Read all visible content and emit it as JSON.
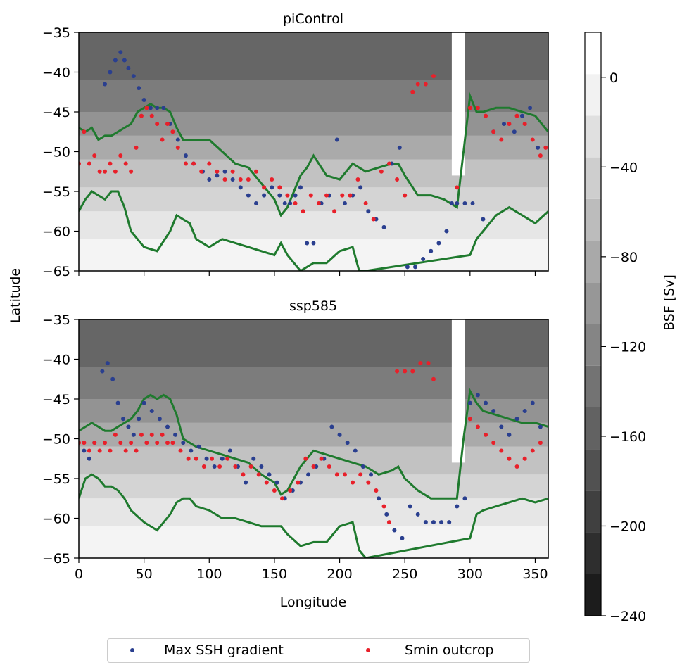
{
  "chart_data": [
    {
      "type": "contour-scatter",
      "title": "piControl",
      "xlabel": "",
      "ylabel": "Latitude",
      "xlim": [
        0,
        360
      ],
      "ylim": [
        -65,
        -35
      ],
      "xticks": [
        0,
        50,
        100,
        150,
        200,
        250,
        300,
        350
      ],
      "yticks": [
        -35,
        -40,
        -45,
        -50,
        -55,
        -60,
        -65
      ],
      "series": [
        {
          "name": "Max SSH gradient",
          "color": "#2a3f8f",
          "x": [
            20,
            24,
            28,
            32,
            35,
            38,
            42,
            46,
            50,
            55,
            60,
            65,
            70,
            76,
            82,
            88,
            95,
            100,
            106,
            112,
            118,
            124,
            130,
            136,
            142,
            148,
            154,
            158,
            162,
            166,
            170,
            175,
            180,
            186,
            192,
            198,
            204,
            210,
            216,
            222,
            228,
            234,
            240,
            246,
            252,
            258,
            264,
            270,
            276,
            282,
            286,
            290,
            296,
            302,
            310,
            318,
            326,
            334,
            340,
            346,
            352
          ],
          "y": [
            -41.5,
            -40,
            -38.5,
            -37.5,
            -38.5,
            -39.5,
            -40.5,
            -42,
            -43.5,
            -44.5,
            -44.5,
            -44.5,
            -46.5,
            -48.5,
            -50.5,
            -51.5,
            -52.5,
            -53.5,
            -53,
            -52.5,
            -53.5,
            -54.5,
            -55.5,
            -56.5,
            -55.5,
            -54.5,
            -55.5,
            -56.5,
            -56.5,
            -55.5,
            -54.5,
            -61.5,
            -61.5,
            -56.5,
            -55.5,
            -48.5,
            -56.5,
            -55.5,
            -54.5,
            -57.5,
            -58.5,
            -59.5,
            -51.5,
            -49.5,
            -64.5,
            -64.5,
            -63.5,
            -62.5,
            -61.5,
            -60,
            -56.5,
            -56.5,
            -56.5,
            -56.5,
            -58.5,
            -47.5,
            -46.5,
            -47.5,
            -45.5,
            -44.5,
            -49.5
          ]
        },
        {
          "name": "Smin outcrop",
          "color": "#e8202a",
          "x": [
            0,
            4,
            8,
            12,
            16,
            20,
            24,
            28,
            32,
            36,
            40,
            44,
            48,
            52,
            56,
            60,
            64,
            68,
            72,
            76,
            82,
            88,
            94,
            100,
            106,
            112,
            118,
            124,
            130,
            136,
            142,
            148,
            154,
            160,
            166,
            172,
            178,
            184,
            190,
            196,
            202,
            208,
            214,
            220,
            226,
            232,
            238,
            244,
            250,
            256,
            260,
            266,
            272,
            290,
            300,
            306,
            312,
            318,
            324,
            330,
            336,
            342,
            348,
            354,
            358
          ],
          "y": [
            -51.5,
            -47.5,
            -51.5,
            -50.5,
            -52.5,
            -52.5,
            -51.5,
            -52.5,
            -50.5,
            -51.5,
            -52.5,
            -49.5,
            -45.5,
            -44.5,
            -45.5,
            -46.5,
            -48.5,
            -46.5,
            -47.5,
            -49.5,
            -51.5,
            -51.5,
            -52.5,
            -51.5,
            -52.5,
            -53.5,
            -52.5,
            -53.5,
            -53.5,
            -52.5,
            -54.5,
            -53.5,
            -54.5,
            -55.5,
            -56.5,
            -57.5,
            -55.5,
            -56.5,
            -55.5,
            -57.5,
            -55.5,
            -55.5,
            -53.5,
            -56.5,
            -58.5,
            -52.5,
            -51.5,
            -53.5,
            -55.5,
            -42.5,
            -41.5,
            -41.5,
            -40.5,
            -54.5,
            -44.5,
            -44.5,
            -45.5,
            -47.5,
            -48.5,
            -46.5,
            -45.5,
            -46.5,
            -48.5,
            -50.5,
            -49.5
          ]
        },
        {
          "name": "Front contour north",
          "color": "#1f7a2e",
          "x": [
            0,
            5,
            10,
            15,
            20,
            25,
            30,
            35,
            40,
            45,
            50,
            55,
            60,
            65,
            70,
            75,
            80,
            90,
            100,
            110,
            120,
            130,
            140,
            150,
            155,
            160,
            165,
            170,
            175,
            180,
            190,
            200,
            210,
            220,
            230,
            240,
            245,
            250,
            260,
            270,
            280,
            290,
            295,
            300,
            305,
            310,
            320,
            330,
            340,
            350,
            360
          ],
          "y": [
            -47,
            -47.5,
            -47,
            -48.5,
            -48,
            -48,
            -47.5,
            -47,
            -46.5,
            -45,
            -44.5,
            -44,
            -44.5,
            -44.5,
            -45,
            -47,
            -48.5,
            -48.5,
            -48.5,
            -50,
            -51.5,
            -52,
            -54,
            -56,
            -58,
            -57,
            -55,
            -53,
            -52,
            -50.5,
            -53,
            -53.5,
            -51.5,
            -52.5,
            -52,
            -51.5,
            -51.5,
            -53,
            -55.5,
            -55.5,
            -56,
            -57,
            -50,
            -43,
            -45,
            -45,
            -44.5,
            -44.5,
            -45,
            -45.5,
            -47.5
          ]
        },
        {
          "name": "Front contour south",
          "color": "#1f7a2e",
          "x": [
            0,
            5,
            10,
            15,
            20,
            25,
            30,
            35,
            40,
            50,
            60,
            70,
            75,
            80,
            85,
            90,
            100,
            110,
            120,
            130,
            140,
            150,
            155,
            160,
            170,
            180,
            190,
            200,
            210,
            215,
            220,
            300,
            305,
            310,
            320,
            330,
            340,
            350,
            360
          ],
          "y": [
            -57.5,
            -56,
            -55,
            -55.5,
            -56,
            -55,
            -55,
            -57,
            -60,
            -62,
            -62.5,
            -60,
            -58,
            -58.5,
            -59,
            -61,
            -62,
            -61,
            -61.5,
            -62,
            -62.5,
            -63,
            -61.5,
            -63,
            -65,
            -64,
            -64,
            -62.5,
            -62,
            -65,
            -65,
            -63,
            -61,
            -60,
            -58,
            -57,
            -58,
            -59,
            -57.5
          ]
        }
      ],
      "contour_levels": [
        -240,
        -220,
        -200,
        -180,
        -160,
        -140,
        -120,
        -100,
        -80,
        -60,
        -40,
        -20,
        0,
        20
      ]
    },
    {
      "type": "contour-scatter",
      "title": "ssp585",
      "xlabel": "Longitude",
      "ylabel": "Latitude",
      "xlim": [
        0,
        360
      ],
      "ylim": [
        -65,
        -35
      ],
      "xticks": [
        0,
        50,
        100,
        150,
        200,
        250,
        300,
        350
      ],
      "yticks": [
        -35,
        -40,
        -45,
        -50,
        -55,
        -60,
        -65
      ],
      "series": [
        {
          "name": "Max SSH gradient",
          "color": "#2a3f8f",
          "x": [
            4,
            8,
            12,
            18,
            22,
            26,
            30,
            34,
            38,
            42,
            46,
            50,
            56,
            62,
            68,
            74,
            80,
            86,
            92,
            98,
            104,
            110,
            116,
            122,
            128,
            134,
            140,
            146,
            152,
            158,
            164,
            170,
            176,
            182,
            188,
            194,
            200,
            206,
            212,
            218,
            224,
            230,
            236,
            242,
            248,
            254,
            260,
            266,
            272,
            278,
            284,
            290,
            296,
            300,
            306,
            312,
            318,
            324,
            330,
            336,
            342,
            348,
            354
          ],
          "y": [
            -51.5,
            -52.5,
            -50.5,
            -41.5,
            -40.5,
            -42.5,
            -45.5,
            -47.5,
            -48.5,
            -49.5,
            -47.5,
            -45.5,
            -46.5,
            -47.5,
            -48.5,
            -49.5,
            -50.5,
            -51.5,
            -51,
            -52.5,
            -53.5,
            -52.5,
            -51.5,
            -53.5,
            -55.5,
            -52.5,
            -53.5,
            -54.5,
            -55.5,
            -57.5,
            -56.5,
            -55.5,
            -54.5,
            -53.5,
            -52.5,
            -48.5,
            -49.5,
            -50.5,
            -51.5,
            -53.5,
            -54.5,
            -57.5,
            -59.5,
            -61.5,
            -62.5,
            -58.5,
            -59.5,
            -60.5,
            -60.5,
            -60.5,
            -60.5,
            -58.5,
            -57.5,
            -45.5,
            -44.5,
            -45.5,
            -46.5,
            -48.5,
            -49.5,
            -47.5,
            -46.5,
            -45.5,
            -48.5
          ]
        },
        {
          "name": "Smin outcrop",
          "color": "#e8202a",
          "x": [
            0,
            4,
            8,
            12,
            16,
            20,
            24,
            28,
            32,
            36,
            40,
            44,
            48,
            52,
            56,
            60,
            64,
            68,
            72,
            78,
            84,
            90,
            96,
            102,
            108,
            114,
            120,
            126,
            132,
            138,
            144,
            150,
            156,
            162,
            168,
            174,
            180,
            186,
            192,
            198,
            204,
            210,
            216,
            222,
            228,
            234,
            238,
            244,
            250,
            256,
            262,
            268,
            272,
            300,
            306,
            312,
            318,
            324,
            330,
            336,
            342,
            348,
            354
          ],
          "y": [
            -50.5,
            -50.5,
            -51.5,
            -50.5,
            -51.5,
            -50.5,
            -51.5,
            -49.5,
            -50.5,
            -51.5,
            -50.5,
            -51.5,
            -49.5,
            -50.5,
            -49.5,
            -50.5,
            -49.5,
            -50.5,
            -50.5,
            -51.5,
            -52.5,
            -52.5,
            -53.5,
            -52.5,
            -53.5,
            -52.5,
            -53.5,
            -54.5,
            -53.5,
            -54.5,
            -55.5,
            -56.5,
            -57.5,
            -56.5,
            -55.5,
            -52.5,
            -53.5,
            -52.5,
            -53.5,
            -54.5,
            -54.5,
            -55.5,
            -54.5,
            -55.5,
            -56.5,
            -58.5,
            -60.5,
            -41.5,
            -41.5,
            -41.5,
            -40.5,
            -40.5,
            -42.5,
            -47.5,
            -48.5,
            -49.5,
            -50.5,
            -51.5,
            -52.5,
            -53.5,
            -52.5,
            -51.5,
            -50.5
          ]
        },
        {
          "name": "Front contour north",
          "color": "#1f7a2e",
          "x": [
            0,
            5,
            10,
            15,
            20,
            25,
            30,
            35,
            40,
            45,
            50,
            55,
            60,
            65,
            70,
            75,
            80,
            90,
            100,
            110,
            120,
            130,
            140,
            150,
            155,
            160,
            165,
            170,
            175,
            180,
            190,
            200,
            210,
            220,
            230,
            240,
            245,
            250,
            260,
            270,
            280,
            290,
            295,
            300,
            305,
            310,
            320,
            330,
            340,
            350,
            360
          ],
          "y": [
            -49,
            -48.5,
            -48,
            -48.5,
            -49,
            -49,
            -48.5,
            -48,
            -47.5,
            -46.5,
            -45,
            -44.5,
            -45,
            -44.5,
            -45,
            -47,
            -50,
            -51,
            -51.5,
            -52,
            -52.5,
            -53,
            -54.5,
            -55.5,
            -57,
            -56.5,
            -55,
            -53.5,
            -52.5,
            -51.5,
            -52,
            -52.5,
            -53,
            -53.5,
            -54.5,
            -54,
            -53.5,
            -55,
            -56.5,
            -57.5,
            -57.5,
            -57.5,
            -50,
            -44,
            -45.5,
            -46.5,
            -47,
            -47.5,
            -48,
            -48,
            -48.5
          ]
        },
        {
          "name": "Front contour south",
          "color": "#1f7a2e",
          "x": [
            0,
            5,
            10,
            15,
            20,
            25,
            30,
            35,
            40,
            50,
            60,
            70,
            75,
            80,
            85,
            90,
            100,
            110,
            120,
            130,
            140,
            150,
            155,
            160,
            170,
            180,
            190,
            200,
            210,
            215,
            220,
            300,
            305,
            310,
            320,
            330,
            340,
            350,
            360
          ],
          "y": [
            -57.5,
            -55,
            -54.5,
            -55,
            -56,
            -56,
            -56.5,
            -57.5,
            -59,
            -60.5,
            -61.5,
            -59.5,
            -58,
            -57.5,
            -57.5,
            -58.5,
            -59,
            -60,
            -60,
            -60.5,
            -61,
            -61,
            -61,
            -62,
            -63.5,
            -63,
            -63,
            -61,
            -60.5,
            -64,
            -65,
            -62.5,
            -59.5,
            -59,
            -58.5,
            -58,
            -57.5,
            -58,
            -57.5
          ]
        }
      ],
      "contour_levels": [
        -240,
        -220,
        -200,
        -180,
        -160,
        -140,
        -120,
        -100,
        -80,
        -60,
        -40,
        -20,
        0,
        20
      ]
    }
  ],
  "axes": {
    "top_title": "piControl",
    "bottom_title": "ssp585",
    "ylabel": "Latitude",
    "xlabel": "Longitude",
    "ytick_labels": [
      "−35",
      "−40",
      "−45",
      "−50",
      "−55",
      "−60",
      "−65"
    ],
    "xtick_labels": [
      "0",
      "50",
      "100",
      "150",
      "200",
      "250",
      "300",
      "350"
    ]
  },
  "colorbar": {
    "label": "BSF [Sv]",
    "tick_labels": [
      "0",
      "−40",
      "−80",
      "−120",
      "−160",
      "−200",
      "−240"
    ],
    "tick_values": [
      0,
      -40,
      -80,
      -120,
      -160,
      -200,
      -240
    ],
    "vmin": -240,
    "vmax": 20,
    "band_colors": [
      "#1c1c1c",
      "#2e2e2e",
      "#404040",
      "#515151",
      "#626262",
      "#737373",
      "#858585",
      "#979797",
      "#a9a9a9",
      "#bcbcbc",
      "#cecece",
      "#e0e0e0",
      "#f2f2f2",
      "#ffffff"
    ]
  },
  "legend": {
    "items": [
      {
        "label": "Max SSH gradient",
        "color": "#2a3f8f"
      },
      {
        "label": "Smin outcrop",
        "color": "#e8202a"
      }
    ]
  }
}
